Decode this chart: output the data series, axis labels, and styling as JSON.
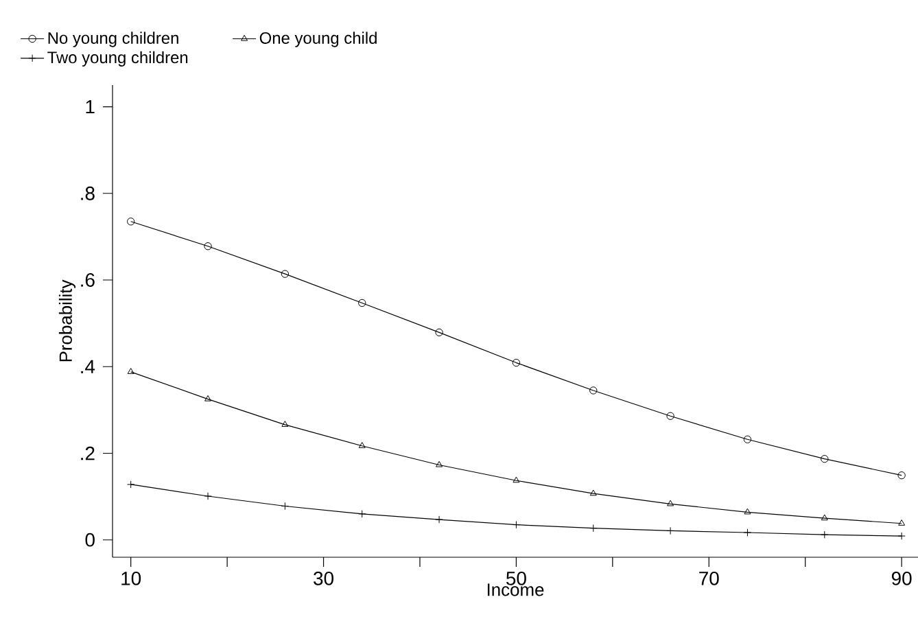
{
  "chart_data": {
    "type": "line",
    "xlabel": "Income",
    "ylabel": "Probability",
    "x": [
      10,
      18,
      26,
      34,
      42,
      50,
      58,
      66,
      74,
      82,
      90
    ],
    "series": [
      {
        "name": "No young children",
        "color": "#000000",
        "marker": "circle",
        "values": [
          0.735,
          0.678,
          0.614,
          0.547,
          0.479,
          0.409,
          0.345,
          0.286,
          0.232,
          0.187,
          0.149
        ]
      },
      {
        "name": "One young child",
        "color": "#000000",
        "marker": "triangle",
        "values": [
          0.388,
          0.325,
          0.266,
          0.217,
          0.173,
          0.137,
          0.107,
          0.083,
          0.064,
          0.05,
          0.038
        ]
      },
      {
        "name": "Two young children",
        "color": "#000000",
        "marker": "cross",
        "values": [
          0.128,
          0.101,
          0.078,
          0.06,
          0.047,
          0.035,
          0.027,
          0.021,
          0.017,
          0.012,
          0.009
        ]
      }
    ],
    "xlim": [
      8.1,
      91.7
    ],
    "ylim": [
      -0.04,
      1.05
    ],
    "xticks": [
      10,
      {
        "value": 20,
        "label": null
      },
      30,
      {
        "value": 40,
        "label": null
      },
      50,
      {
        "value": 60,
        "label": null
      },
      70,
      {
        "value": 80,
        "label": null
      },
      90
    ],
    "yticks": [
      {
        "value": 0,
        "label": "0"
      },
      {
        "value": 0.2,
        "label": ".2"
      },
      {
        "value": 0.4,
        "label": ".4"
      },
      {
        "value": 0.6,
        "label": ".6"
      },
      {
        "value": 0.8,
        "label": ".8"
      },
      {
        "value": 1,
        "label": "1"
      }
    ],
    "grid": false,
    "legend": "top",
    "line_style": "solid"
  }
}
